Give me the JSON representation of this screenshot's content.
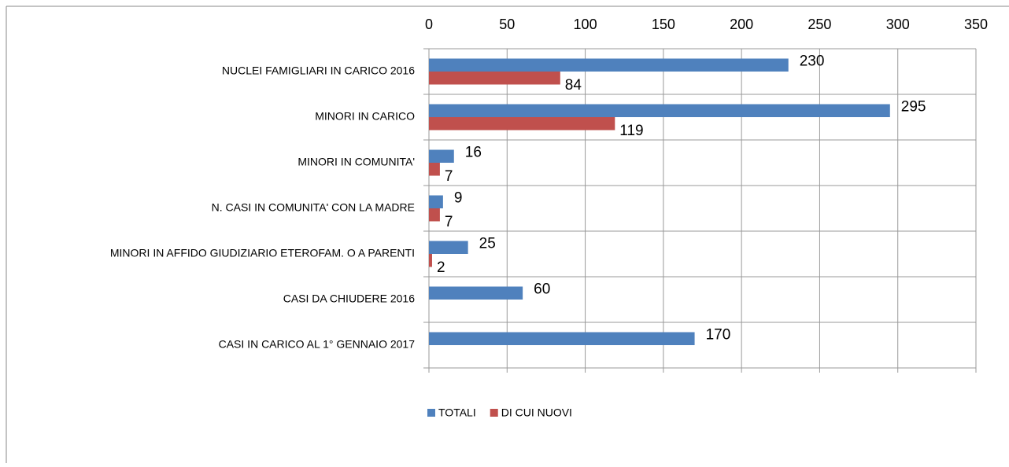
{
  "chart_data": {
    "type": "bar",
    "orientation": "horizontal",
    "categories": [
      "NUCLEI FAMIGLIARI IN CARICO 2016",
      "MINORI IN CARICO",
      "MINORI IN COMUNITA'",
      "N. CASI IN COMUNITA' CON LA MADRE",
      "MINORI IN AFFIDO GIUDIZIARIO ETEROFAM. O A PARENTI",
      "CASI DA CHIUDERE 2016",
      "CASI IN CARICO AL 1° GENNAIO 2017"
    ],
    "series": [
      {
        "name": "TOTALI",
        "color": "#4f81bd",
        "values": [
          230,
          295,
          16,
          9,
          25,
          60,
          170
        ]
      },
      {
        "name": "DI CUI NUOVI",
        "color": "#c0504d",
        "values": [
          84,
          119,
          7,
          7,
          2,
          null,
          null
        ]
      }
    ],
    "xlim": [
      0,
      350
    ],
    "xticks": [
      0,
      50,
      100,
      150,
      200,
      250,
      300,
      350
    ],
    "grid": true,
    "legend": "bottom"
  }
}
